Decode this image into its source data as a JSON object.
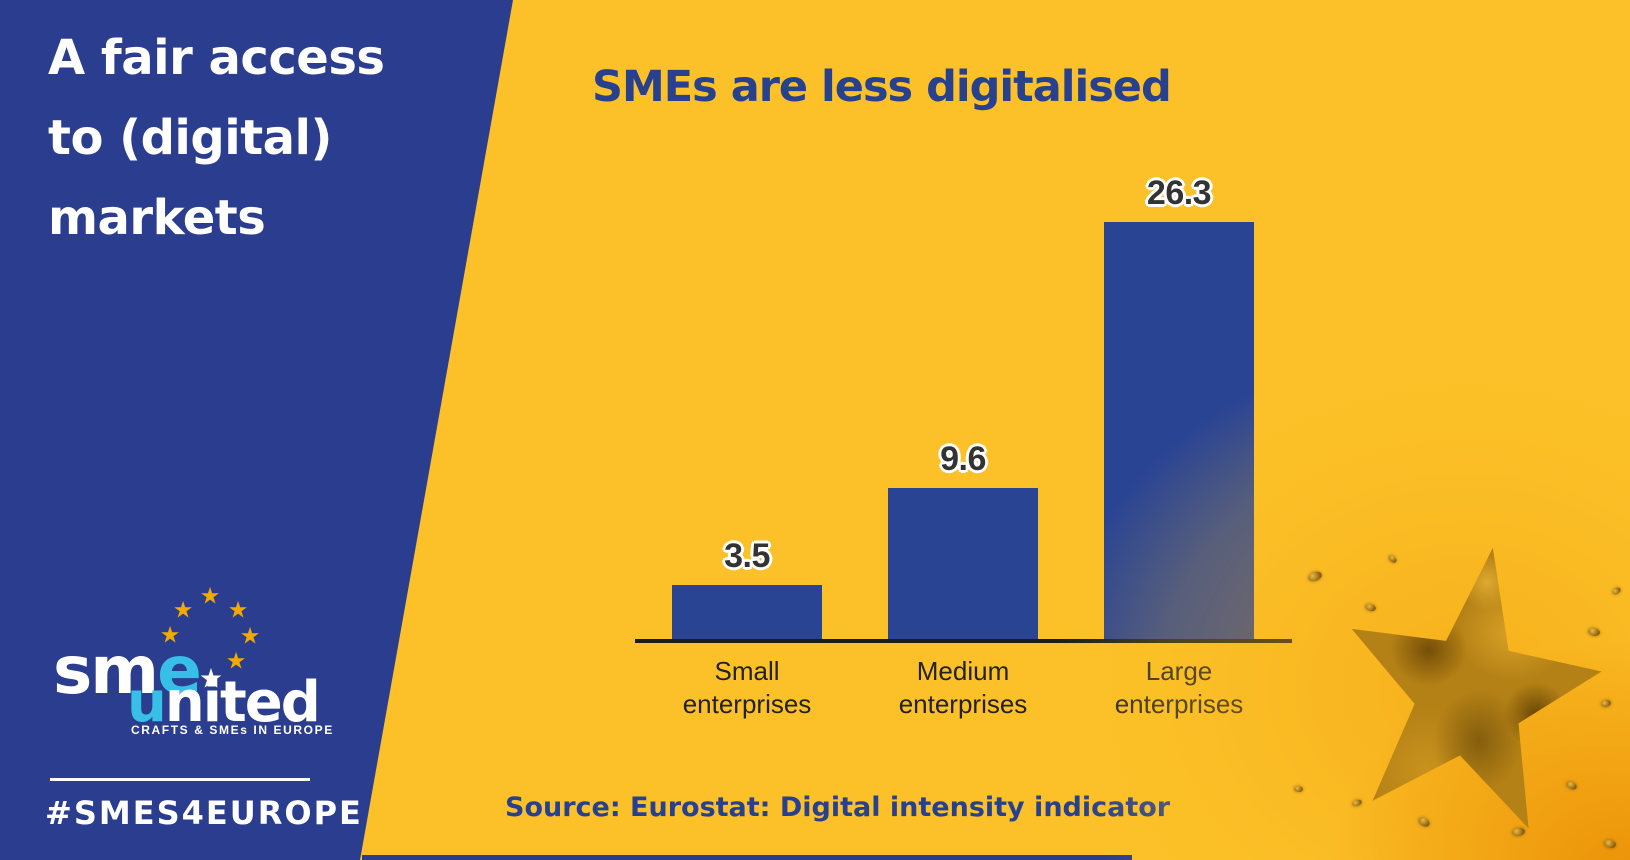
{
  "left_panel": {
    "headline_line1": "A fair access",
    "headline_line2": "to (digital)",
    "headline_line3": "markets"
  },
  "brand": {
    "logo": {
      "part_sm": "sm",
      "part_e": "e",
      "part_u": "u",
      "part_nited": "nited",
      "tagline": "CRAFTS & SMEs IN EUROPE",
      "star_glyph": "★"
    },
    "hashtag": "#SMES4EUROPE"
  },
  "chart_data": {
    "type": "bar",
    "title": "SMEs are less digitalised",
    "categories": [
      "Small enterprises",
      "Medium enterprises",
      "Large enterprises"
    ],
    "values": [
      3.5,
      9.6,
      26.3
    ],
    "bars": [
      {
        "label_line1": "Small",
        "label_line2": "enterprises",
        "value": 3.5,
        "value_label": "3.5"
      },
      {
        "label_line1": "Medium",
        "label_line2": "enterprises",
        "value": 9.6,
        "value_label": "9.6"
      },
      {
        "label_line1": "Large",
        "label_line2": "enterprises",
        "value": 26.3,
        "value_label": "26.3"
      }
    ],
    "xlabel": "",
    "ylabel": "",
    "ylim": [
      0,
      28
    ],
    "grid": false,
    "legend": false,
    "source": "Source: Eurostat: Digital intensity indicator"
  },
  "colors": {
    "panel_blue": "#2b3d8e",
    "background_yellow": "#fcc128",
    "bar_blue": "#2a4494",
    "title_blue": "#27418f",
    "logo_cyan": "#38bfe8",
    "star_gold": "#f2a900",
    "axis_black": "#1c1c1c"
  }
}
